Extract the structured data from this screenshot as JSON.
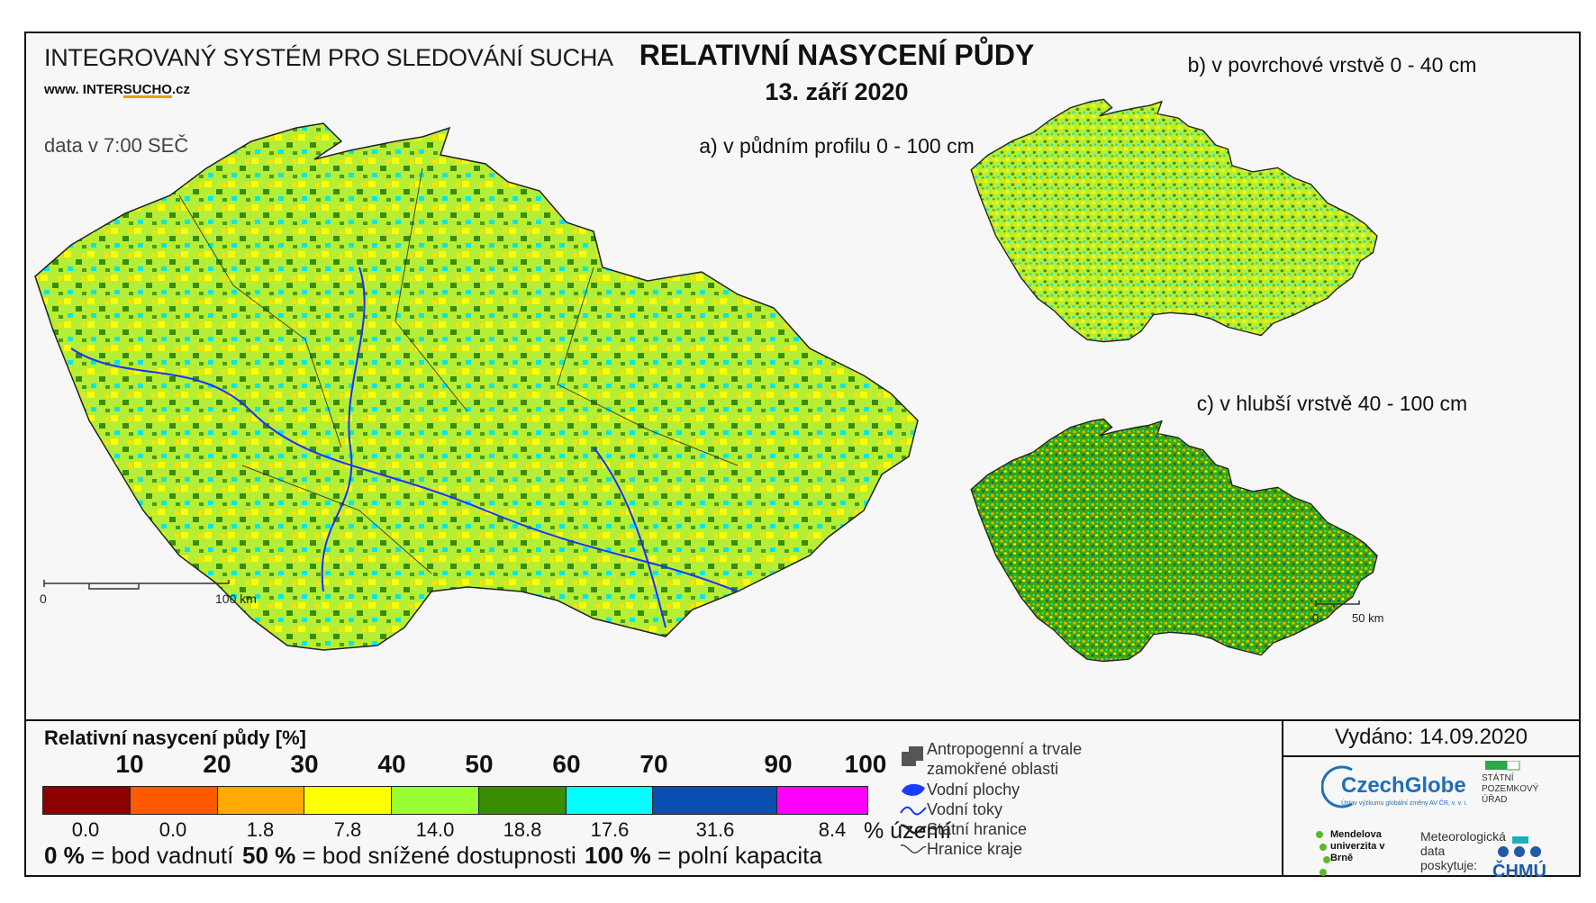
{
  "header": {
    "system_name": "INTEGROVANÝ SYSTÉM PRO SLEDOVÁNÍ SUCHA",
    "url_prefix": "www. INTER",
    "url_mid": "SUCHO",
    "url_suffix": ".cz",
    "data_time": "data v 7:00 SEČ",
    "title": "RELATIVNÍ NASYCENÍ PŮDY",
    "date": "13. září 2020"
  },
  "maps": {
    "a_label": "a) v půdním profilu 0 - 100 cm",
    "b_label": "b) v povrchové vrstvě 0 - 40 cm",
    "c_label": "c) v hlubší vrstvě 40 - 100 cm",
    "scale_main": {
      "start": "0",
      "end": "100 km"
    },
    "scale_small": {
      "start": "0",
      "end": "50 km"
    }
  },
  "legend": {
    "title": "Relativní nasycení půdy [%]",
    "thresholds": [
      "10",
      "20",
      "30",
      "40",
      "50",
      "60",
      "70",
      "90",
      "100"
    ],
    "classes": [
      {
        "color": "#8b0000",
        "pct": "0.0"
      },
      {
        "color": "#ff5a00",
        "pct": "0.0"
      },
      {
        "color": "#ffaa00",
        "pct": "1.8"
      },
      {
        "color": "#ffff00",
        "pct": "7.8"
      },
      {
        "color": "#99ff33",
        "pct": "14.0"
      },
      {
        "color": "#3a8c00",
        "pct": "18.8"
      },
      {
        "color": "#00ffff",
        "pct": "17.6"
      },
      {
        "color": "#0a4fb0",
        "pct": "31.6"
      },
      {
        "color": "#ff00ff",
        "pct": "8.4"
      }
    ],
    "pct_unit": "% území",
    "notes": [
      {
        "value": "0 %",
        "text": "= bod vadnutí"
      },
      {
        "value": "50 %",
        "text": "= bod snížené dostupnosti"
      },
      {
        "value": "100 %",
        "text": "= polní kapacita"
      }
    ]
  },
  "symbols": {
    "anthropogenic_1": "Antropogenní a trvale",
    "anthropogenic_2": "zamokřené oblasti",
    "water_bodies": "Vodní plochy",
    "rivers": "Vodní toky",
    "state_border": "Státní hranice",
    "region_border": "Hranice kraje"
  },
  "footer": {
    "issued": "Vydáno: 14.09.2020",
    "czechglobe": "CzechGlobe",
    "czechglobe_sub": "Ústav výzkumu globální změny AV ČR, v. v. i.",
    "spu": "STÁTNÍ POZEMKOVÝ ÚŘAD",
    "mendel": "Mendelova univerzita v Brně",
    "meteo": "Meteorologická data poskytuje:",
    "chmu": "ČHMÚ"
  },
  "colors": {
    "frame": "#111111",
    "background": "#f7f7f7",
    "accent_orange": "#e8a000"
  }
}
